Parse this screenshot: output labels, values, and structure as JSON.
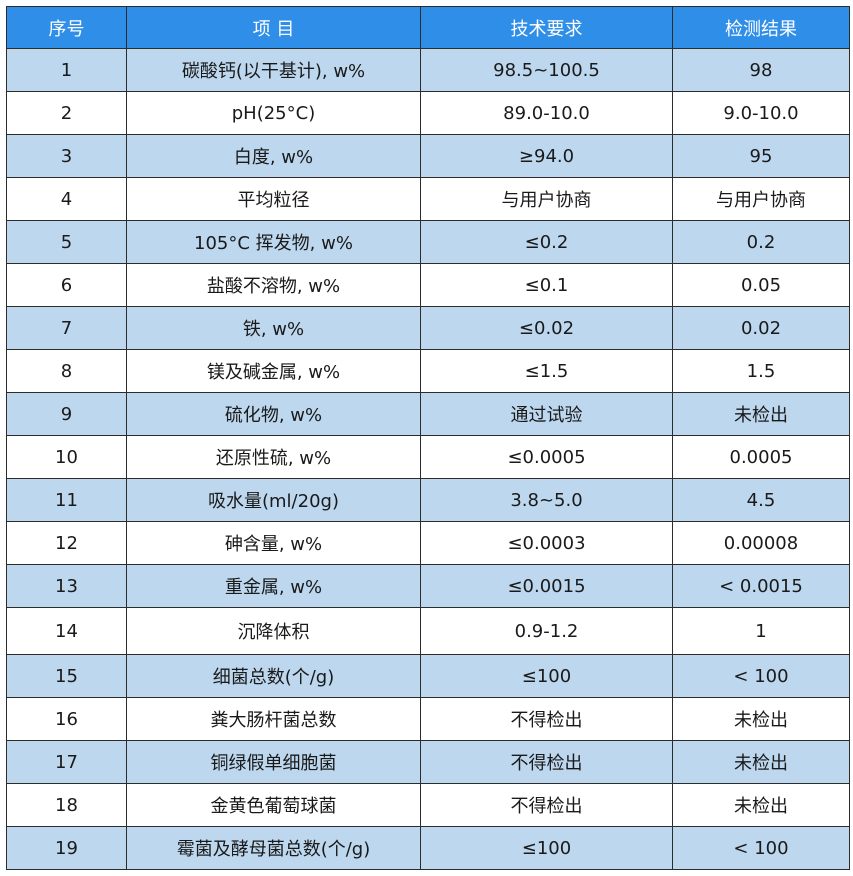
{
  "table": {
    "headers": [
      "序号",
      "项 目",
      "技术要求",
      "检测结果"
    ],
    "rows": [
      [
        "1",
        "碳酸钙(以干基计), w%",
        "98.5~100.5",
        "98"
      ],
      [
        "2",
        "pH(25°C)",
        "89.0-10.0",
        "9.0-10.0"
      ],
      [
        "3",
        "白度, w%",
        "≥94.0",
        "95"
      ],
      [
        "4",
        "平均粒径",
        "与用户协商",
        "与用户协商"
      ],
      [
        "5",
        "105°C 挥发物, w%",
        "≤0.2",
        "0.2"
      ],
      [
        "6",
        "盐酸不溶物, w%",
        "≤0.1",
        "0.05"
      ],
      [
        "7",
        "铁, w%",
        "≤0.02",
        "0.02"
      ],
      [
        "8",
        "镁及碱金属, w%",
        "≤1.5",
        "1.5"
      ],
      [
        "9",
        "硫化物, w%",
        "通过试验",
        "未检出"
      ],
      [
        "10",
        "还原性硫, w%",
        "≤0.0005",
        "0.0005"
      ],
      [
        "11",
        "吸水量(ml/20g)",
        "3.8~5.0",
        "4.5"
      ],
      [
        "12",
        "砷含量, w%",
        "≤0.0003",
        "0.00008"
      ],
      [
        "13",
        "重金属, w%",
        "≤0.0015",
        "< 0.0015"
      ],
      [
        "14",
        "沉降体积",
        "0.9-1.2",
        "1"
      ],
      [
        "15",
        "细菌总数(个/g)",
        "≤100",
        "< 100"
      ],
      [
        "16",
        "粪大肠杆菌总数",
        "不得检出",
        "未检出"
      ],
      [
        "17",
        "铜绿假单细胞菌",
        "不得检出",
        "未检出"
      ],
      [
        "18",
        "金黄色葡萄球菌",
        "不得检出",
        "未检出"
      ],
      [
        "19",
        "霉菌及酵母菌总数(个/g)",
        "≤100",
        "< 100"
      ]
    ]
  },
  "colors": {
    "header_bg": "#2f8ee8",
    "header_text": "#ffffff",
    "stripe_bg": "#bdd7ee",
    "plain_bg": "#ffffff",
    "border": "#2c2c2c"
  }
}
